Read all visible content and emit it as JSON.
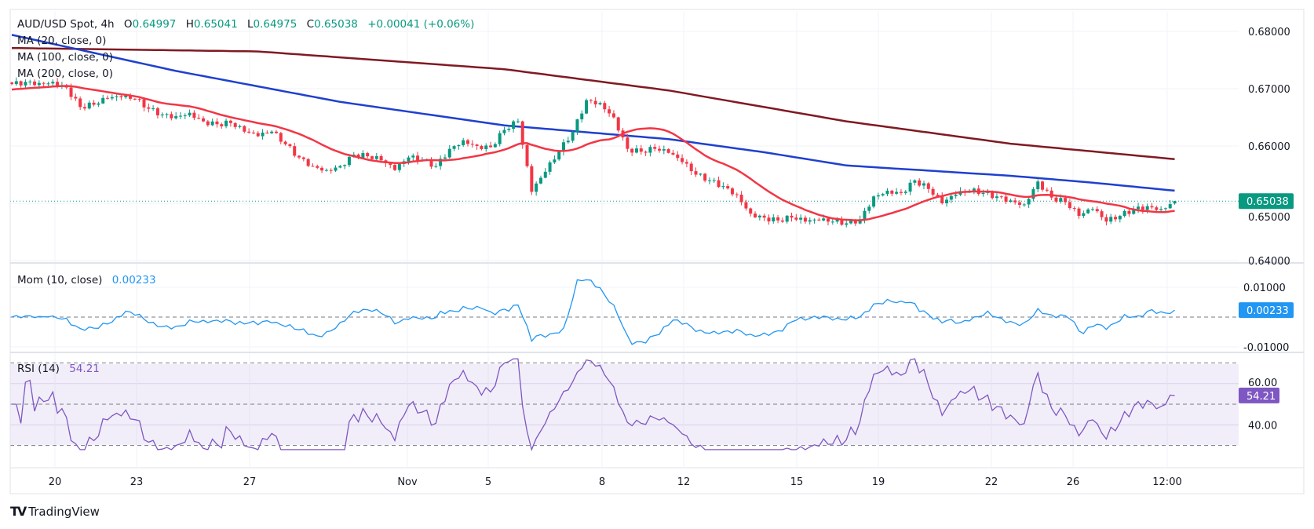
{
  "header": {
    "symbol": "AUD/USD Spot, 4h",
    "open_label": "O",
    "open": "0.64997",
    "high_label": "H",
    "high": "0.65041",
    "low_label": "L",
    "low": "0.64975",
    "close_label": "C",
    "close": "0.65038",
    "change": "+0.00041 (+0.06%)"
  },
  "indicators": {
    "ma20": "MA (20, close, 0)",
    "ma100": "MA (100, close, 0)",
    "ma200": "MA (200, close, 0)",
    "mom_label": "Mom (10, close)",
    "mom_value": "0.00233",
    "rsi_label": "RSI (14)",
    "rsi_value": "54.21"
  },
  "branding": {
    "logo_text": "TradingView"
  },
  "colors": {
    "up": "#089981",
    "down": "#f23645",
    "ma20": "#f23645",
    "ma100": "#1e40cf",
    "ma200": "#801922",
    "mom": "#2196f3",
    "rsi": "#7e57c2"
  },
  "chart_data": [
    {
      "type": "candlestick",
      "timeframe": "4h",
      "x_tick_labels": [
        "20",
        "23",
        "27",
        "Nov",
        "5",
        "8",
        "12",
        "15",
        "19",
        "22",
        "26",
        "12:00"
      ],
      "y_tick_labels": [
        "0.68000",
        "0.67000",
        "0.66000",
        "0.65000",
        "0.64000"
      ],
      "ylim": [
        0.6385,
        0.6815
      ],
      "last_price": 0.65038,
      "last_bar": {
        "open": 0.64997,
        "high": 0.65041,
        "low": 0.64975,
        "close": 0.65038
      },
      "close_samples_12h": [
        0.6708,
        0.6712,
        0.671,
        0.6712,
        0.6702,
        0.6668,
        0.6672,
        0.6683,
        0.6685,
        0.6682,
        0.6665,
        0.6655,
        0.6652,
        0.6658,
        0.6643,
        0.6638,
        0.664,
        0.6625,
        0.6617,
        0.6625,
        0.6603,
        0.658,
        0.6565,
        0.6558,
        0.6565,
        0.6585,
        0.6582,
        0.6575,
        0.6558,
        0.658,
        0.6575,
        0.6565,
        0.6595,
        0.661,
        0.66,
        0.6598,
        0.6628,
        0.6643,
        0.652,
        0.6555,
        0.659,
        0.6625,
        0.668,
        0.6675,
        0.665,
        0.6595,
        0.659,
        0.6595,
        0.6588,
        0.6572,
        0.655,
        0.654,
        0.653,
        0.6515,
        0.6482,
        0.6475,
        0.647,
        0.6475,
        0.6468,
        0.647,
        0.6468,
        0.6465,
        0.6472,
        0.6512,
        0.6522,
        0.6518,
        0.654,
        0.6525,
        0.65,
        0.6515,
        0.6522,
        0.6518,
        0.6512,
        0.6505,
        0.6498,
        0.6538,
        0.651,
        0.6502,
        0.6478,
        0.649,
        0.6468,
        0.6478,
        0.649,
        0.6495,
        0.649,
        0.65038
      ],
      "ma100_samples": [
        [
          0,
          0.6794
        ],
        [
          12,
          0.6731
        ],
        [
          24,
          0.6677
        ],
        [
          36,
          0.6636
        ],
        [
          42,
          0.6624
        ],
        [
          48,
          0.6612
        ],
        [
          55,
          0.6589
        ],
        [
          61,
          0.6566
        ],
        [
          67,
          0.6557
        ],
        [
          73,
          0.6548
        ],
        [
          79,
          0.6536
        ],
        [
          85,
          0.6522
        ]
      ],
      "ma200_samples": [
        [
          0,
          0.6771
        ],
        [
          18,
          0.6765
        ],
        [
          36,
          0.6734
        ],
        [
          48,
          0.6697
        ],
        [
          61,
          0.6643
        ],
        [
          73,
          0.6604
        ],
        [
          85,
          0.6577
        ]
      ]
    },
    {
      "type": "line",
      "name": "Mom (10, close)",
      "y_tick_labels": [
        "0.01000",
        "-0.01000"
      ],
      "ylim": [
        -0.0105,
        0.0105
      ],
      "last_value": 0.00233
    },
    {
      "type": "line",
      "name": "RSI (14)",
      "y_tick_labels": [
        "60.00",
        "40.00"
      ],
      "band": [
        30,
        70
      ],
      "midline": 50,
      "last_value": 54.21
    }
  ]
}
